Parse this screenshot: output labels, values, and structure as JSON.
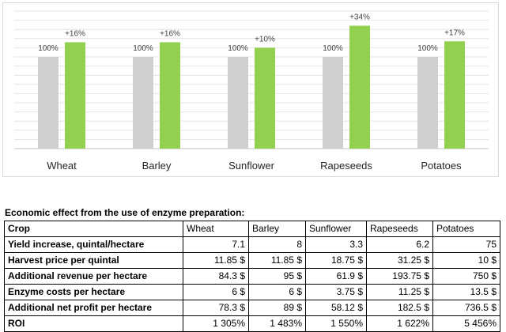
{
  "chart_data": {
    "type": "bar",
    "categories": [
      "Wheat",
      "Barley",
      "Sunflower",
      "Rapeseeds",
      "Potatoes"
    ],
    "series": [
      {
        "values": [
          100,
          100,
          100,
          100,
          100
        ],
        "labels": [
          "100%",
          "100%",
          "100%",
          "100%",
          "100%"
        ],
        "color": "#d0cece"
      },
      {
        "values": [
          116,
          116,
          110,
          134,
          117
        ],
        "labels": [
          "+16%",
          "+16%",
          "+10%",
          "+34%",
          "+17%"
        ],
        "color": "#92d050"
      }
    ],
    "ylim": [
      0,
      150
    ],
    "grid": true,
    "legend": "none"
  },
  "table": {
    "title": "Economic effect from the use of enzyme preparation:",
    "header": [
      "Crop",
      "Wheat",
      "Barley",
      "Sunflower",
      "Rapeseeds",
      "Potatoes"
    ],
    "rows": [
      [
        "Yield increase, quintal/hectare",
        "7.1",
        "8",
        "3.3",
        "6.2",
        "75"
      ],
      [
        "Harvest price per quintal",
        "11.85 $",
        "11.85 $",
        "18.75 $",
        "31.25 $",
        "10 $"
      ],
      [
        "Additional revenue per hectare",
        "84.3 $",
        "95 $",
        "61.9 $",
        "193.75 $",
        "750 $"
      ],
      [
        "Enzyme costs per hectare",
        "6 $",
        "6 $",
        "3.75 $",
        "11.25 $",
        "13.5 $"
      ],
      [
        "Additional net profit per hectare",
        "78.3 $",
        "89 $",
        "58.12 $",
        "182.5 $",
        "736.5 $"
      ],
      [
        "ROI",
        "1 305%",
        "1 483%",
        "1 550%",
        "1 622%",
        "5 456%"
      ]
    ]
  }
}
